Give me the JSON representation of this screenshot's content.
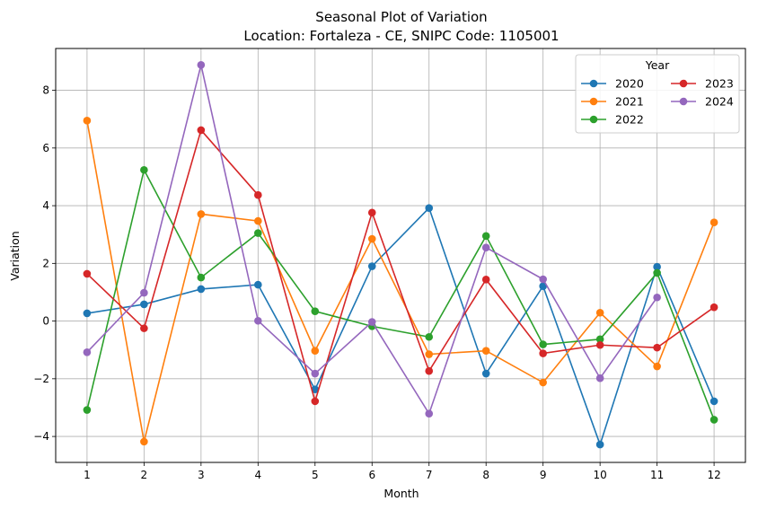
{
  "chart_data": {
    "type": "line",
    "title": "Seasonal Plot of Variation",
    "subtitle": "Location: Fortaleza - CE, SNIPC Code: 1105001",
    "xlabel": "Month",
    "ylabel": "Variation",
    "x": [
      1,
      2,
      3,
      4,
      5,
      6,
      7,
      8,
      9,
      10,
      11,
      12
    ],
    "xlim": [
      0.45,
      12.55
    ],
    "ylim": [
      -4.9,
      9.45
    ],
    "yticks": [
      -4,
      -2,
      0,
      2,
      4,
      6,
      8
    ],
    "grid": true,
    "legend": {
      "title": "Year",
      "position": "top-right",
      "columns": 2
    },
    "series": [
      {
        "name": "2020",
        "color": "#1f77b4",
        "values": [
          0.27,
          0.58,
          1.11,
          1.26,
          -2.37,
          1.9,
          3.92,
          -1.82,
          1.21,
          -4.28,
          1.88,
          -2.78
        ]
      },
      {
        "name": "2021",
        "color": "#ff7f0e",
        "values": [
          6.95,
          -4.18,
          3.71,
          3.47,
          -1.03,
          2.85,
          -1.15,
          -1.03,
          -2.13,
          0.29,
          -1.57,
          3.42
        ]
      },
      {
        "name": "2022",
        "color": "#2ca02c",
        "values": [
          -3.08,
          5.24,
          1.51,
          3.05,
          0.34,
          -0.18,
          -0.55,
          2.95,
          -0.81,
          -0.63,
          1.67,
          -3.42
        ]
      },
      {
        "name": "2023",
        "color": "#d62728",
        "values": [
          1.64,
          -0.25,
          6.62,
          4.37,
          -2.78,
          3.76,
          -1.73,
          1.44,
          -1.12,
          -0.83,
          -0.92,
          0.48
        ]
      },
      {
        "name": "2024",
        "color": "#9467bd",
        "values": [
          -1.08,
          0.98,
          8.88,
          0.01,
          -1.82,
          -0.03,
          -3.21,
          2.55,
          1.45,
          -1.98,
          0.82,
          null
        ]
      }
    ]
  }
}
